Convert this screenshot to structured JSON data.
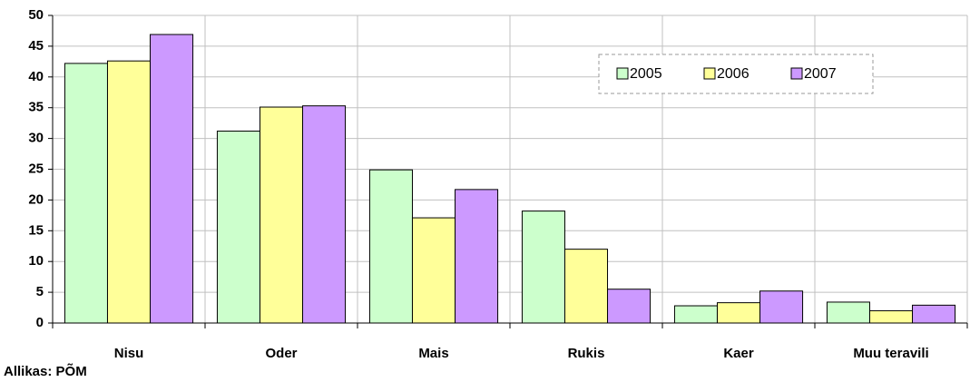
{
  "chart_data": {
    "type": "bar",
    "categories": [
      "Nisu",
      "Oder",
      "Mais",
      "Rukis",
      "Kaer",
      "Muu teravili"
    ],
    "series": [
      {
        "name": "2005",
        "color": "#ccffcc",
        "values": [
          42.2,
          31.2,
          24.9,
          18.2,
          2.8,
          3.4
        ]
      },
      {
        "name": "2006",
        "color": "#ffff99",
        "values": [
          42.6,
          35.1,
          17.1,
          12.0,
          3.3,
          2.0
        ]
      },
      {
        "name": "2007",
        "color": "#cc99ff",
        "values": [
          46.9,
          35.3,
          21.7,
          5.5,
          5.2,
          2.9
        ]
      }
    ],
    "ylim": [
      0,
      50
    ],
    "yticks": [
      0,
      5,
      10,
      15,
      20,
      25,
      30,
      35,
      40,
      45,
      50
    ],
    "grid": true,
    "legend_position": "top-right",
    "source": "Allikas: PÕM"
  }
}
